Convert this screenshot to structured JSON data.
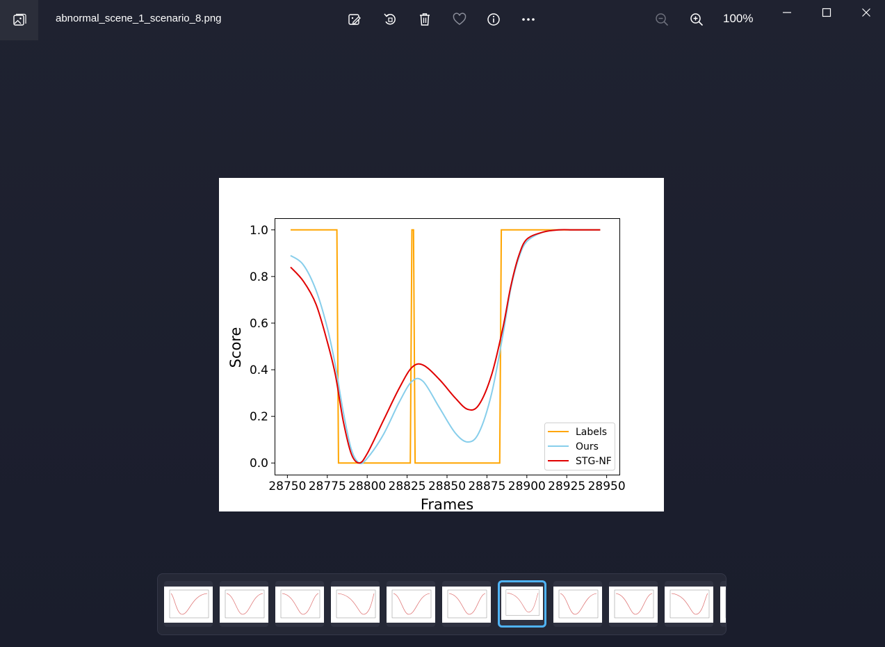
{
  "window": {
    "filename": "abnormal_scene_1_scenario_8.png",
    "zoom": "100%"
  },
  "toolbar": {
    "items": [
      "edit-icon",
      "rotate-icon",
      "delete-icon",
      "favorite-icon",
      "info-icon",
      "more-icon"
    ],
    "zoom_out": "zoom-out-icon",
    "zoom_in": "zoom-in-icon"
  },
  "window_controls": [
    "minimize-icon",
    "maximize-icon",
    "close-icon"
  ],
  "colors": {
    "labels": "#ffa500",
    "ours": "#87ceeb",
    "stgnf": "#e00000",
    "accent": "#4fb3f6"
  },
  "chart_data": {
    "type": "line",
    "xlabel": "Frames",
    "ylabel": "Score",
    "xlim": [
      28742,
      28958
    ],
    "ylim": [
      -0.05,
      1.05
    ],
    "xticks": [
      28750,
      28775,
      28800,
      28825,
      28850,
      28875,
      28900,
      28925,
      28950
    ],
    "xtick_labels": [
      "28750",
      "28775",
      "28800",
      "28825",
      "28850",
      "28875",
      "28900",
      "28925",
      "28950"
    ],
    "yticks": [
      0.0,
      0.2,
      0.4,
      0.6,
      0.8,
      1.0
    ],
    "ytick_labels": [
      "0.0",
      "0.2",
      "0.4",
      "0.6",
      "0.8",
      "1.0"
    ],
    "legend_position": "lower-right",
    "series": [
      {
        "name": "Labels",
        "x": [
          28752,
          28781,
          28782,
          28808,
          28827,
          28828,
          28829,
          28830,
          28856,
          28883,
          28884,
          28900,
          28930,
          28946
        ],
        "y": [
          1.0,
          1.0,
          0.0,
          0.0,
          0.0,
          1.0,
          1.0,
          0.0,
          0.0,
          0.0,
          1.0,
          1.0,
          1.0,
          1.0
        ]
      },
      {
        "name": "Ours",
        "x": [
          28752,
          28760,
          28768,
          28775,
          28780,
          28785,
          28790,
          28795,
          28800,
          28810,
          28820,
          28828,
          28835,
          28845,
          28855,
          28863,
          28870,
          28878,
          28885,
          28890,
          28895,
          28900,
          28910,
          28920,
          28930,
          28946
        ],
        "y": [
          0.89,
          0.85,
          0.74,
          0.58,
          0.42,
          0.22,
          0.06,
          0.0,
          0.02,
          0.12,
          0.26,
          0.35,
          0.35,
          0.24,
          0.13,
          0.09,
          0.13,
          0.3,
          0.55,
          0.75,
          0.88,
          0.95,
          0.99,
          1.0,
          1.0,
          1.0
        ]
      },
      {
        "name": "STG-NF",
        "x": [
          28752,
          28760,
          28768,
          28775,
          28780,
          28785,
          28790,
          28795,
          28800,
          28810,
          28820,
          28828,
          28835,
          28845,
          28855,
          28863,
          28870,
          28878,
          28885,
          28890,
          28895,
          28900,
          28910,
          28920,
          28930,
          28946
        ],
        "y": [
          0.84,
          0.78,
          0.68,
          0.52,
          0.38,
          0.18,
          0.04,
          0.0,
          0.04,
          0.18,
          0.32,
          0.41,
          0.42,
          0.36,
          0.28,
          0.23,
          0.25,
          0.38,
          0.58,
          0.76,
          0.89,
          0.96,
          0.99,
          1.0,
          1.0,
          1.0
        ]
      }
    ]
  },
  "filmstrip": {
    "selected_index": 6,
    "count": 11
  }
}
